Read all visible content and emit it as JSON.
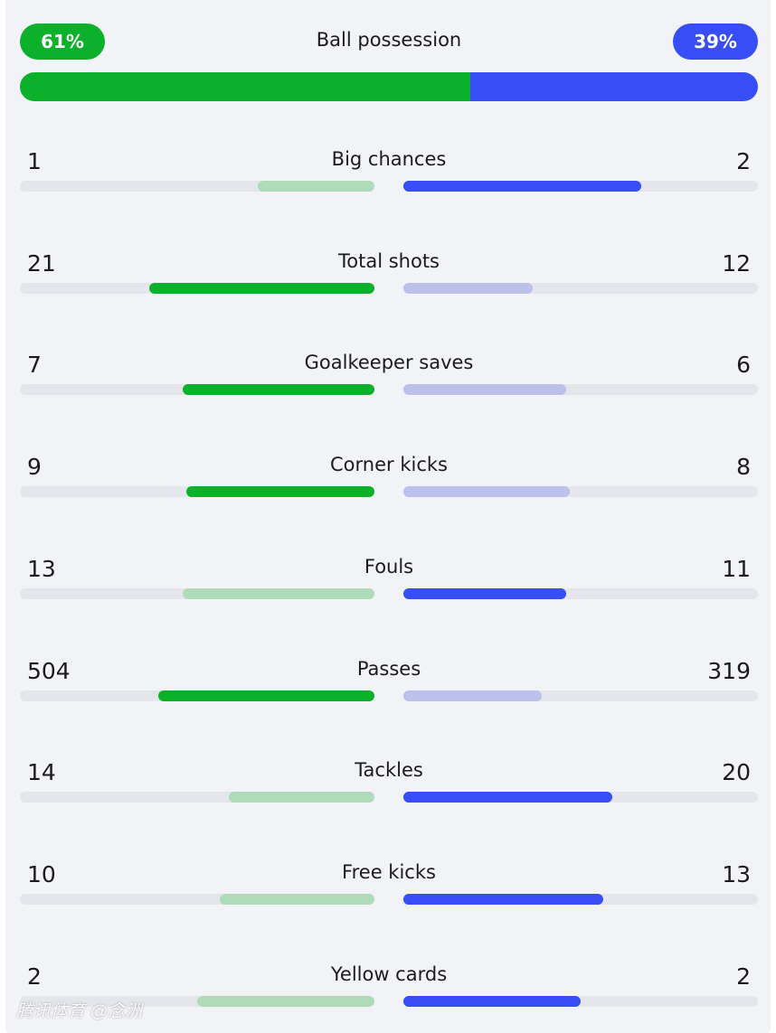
{
  "colors": {
    "home_strong": "#0bb12a",
    "home_light": "#b0dbb9",
    "away_strong": "#374df5",
    "away_light": "#bbc1eb",
    "track": "#e4e6eb"
  },
  "possession": {
    "title": "Ball possession",
    "home_label": "61%",
    "away_label": "39%",
    "home_value": 61,
    "away_value": 39
  },
  "stats": [
    {
      "label": "Big chances",
      "home": "1",
      "away": "2",
      "home_frac": 0.33,
      "away_frac": 0.67,
      "leader": "away"
    },
    {
      "label": "Total shots",
      "home": "21",
      "away": "12",
      "home_frac": 0.635,
      "away_frac": 0.365,
      "leader": "home"
    },
    {
      "label": "Goalkeeper saves",
      "home": "7",
      "away": "6",
      "home_frac": 0.54,
      "away_frac": 0.46,
      "leader": "home"
    },
    {
      "label": "Corner kicks",
      "home": "9",
      "away": "8",
      "home_frac": 0.53,
      "away_frac": 0.47,
      "leader": "home"
    },
    {
      "label": "Fouls",
      "home": "13",
      "away": "11",
      "home_frac": 0.54,
      "away_frac": 0.46,
      "leader": "away"
    },
    {
      "label": "Passes",
      "home": "504",
      "away": "319",
      "home_frac": 0.61,
      "away_frac": 0.39,
      "leader": "home"
    },
    {
      "label": "Tackles",
      "home": "14",
      "away": "20",
      "home_frac": 0.41,
      "away_frac": 0.59,
      "leader": "away"
    },
    {
      "label": "Free kicks",
      "home": "10",
      "away": "13",
      "home_frac": 0.435,
      "away_frac": 0.565,
      "leader": "away"
    },
    {
      "label": "Yellow cards",
      "home": "2",
      "away": "2",
      "home_frac": 0.5,
      "away_frac": 0.5,
      "leader": "away"
    }
  ],
  "watermark": "腾讯体育 @念洲"
}
